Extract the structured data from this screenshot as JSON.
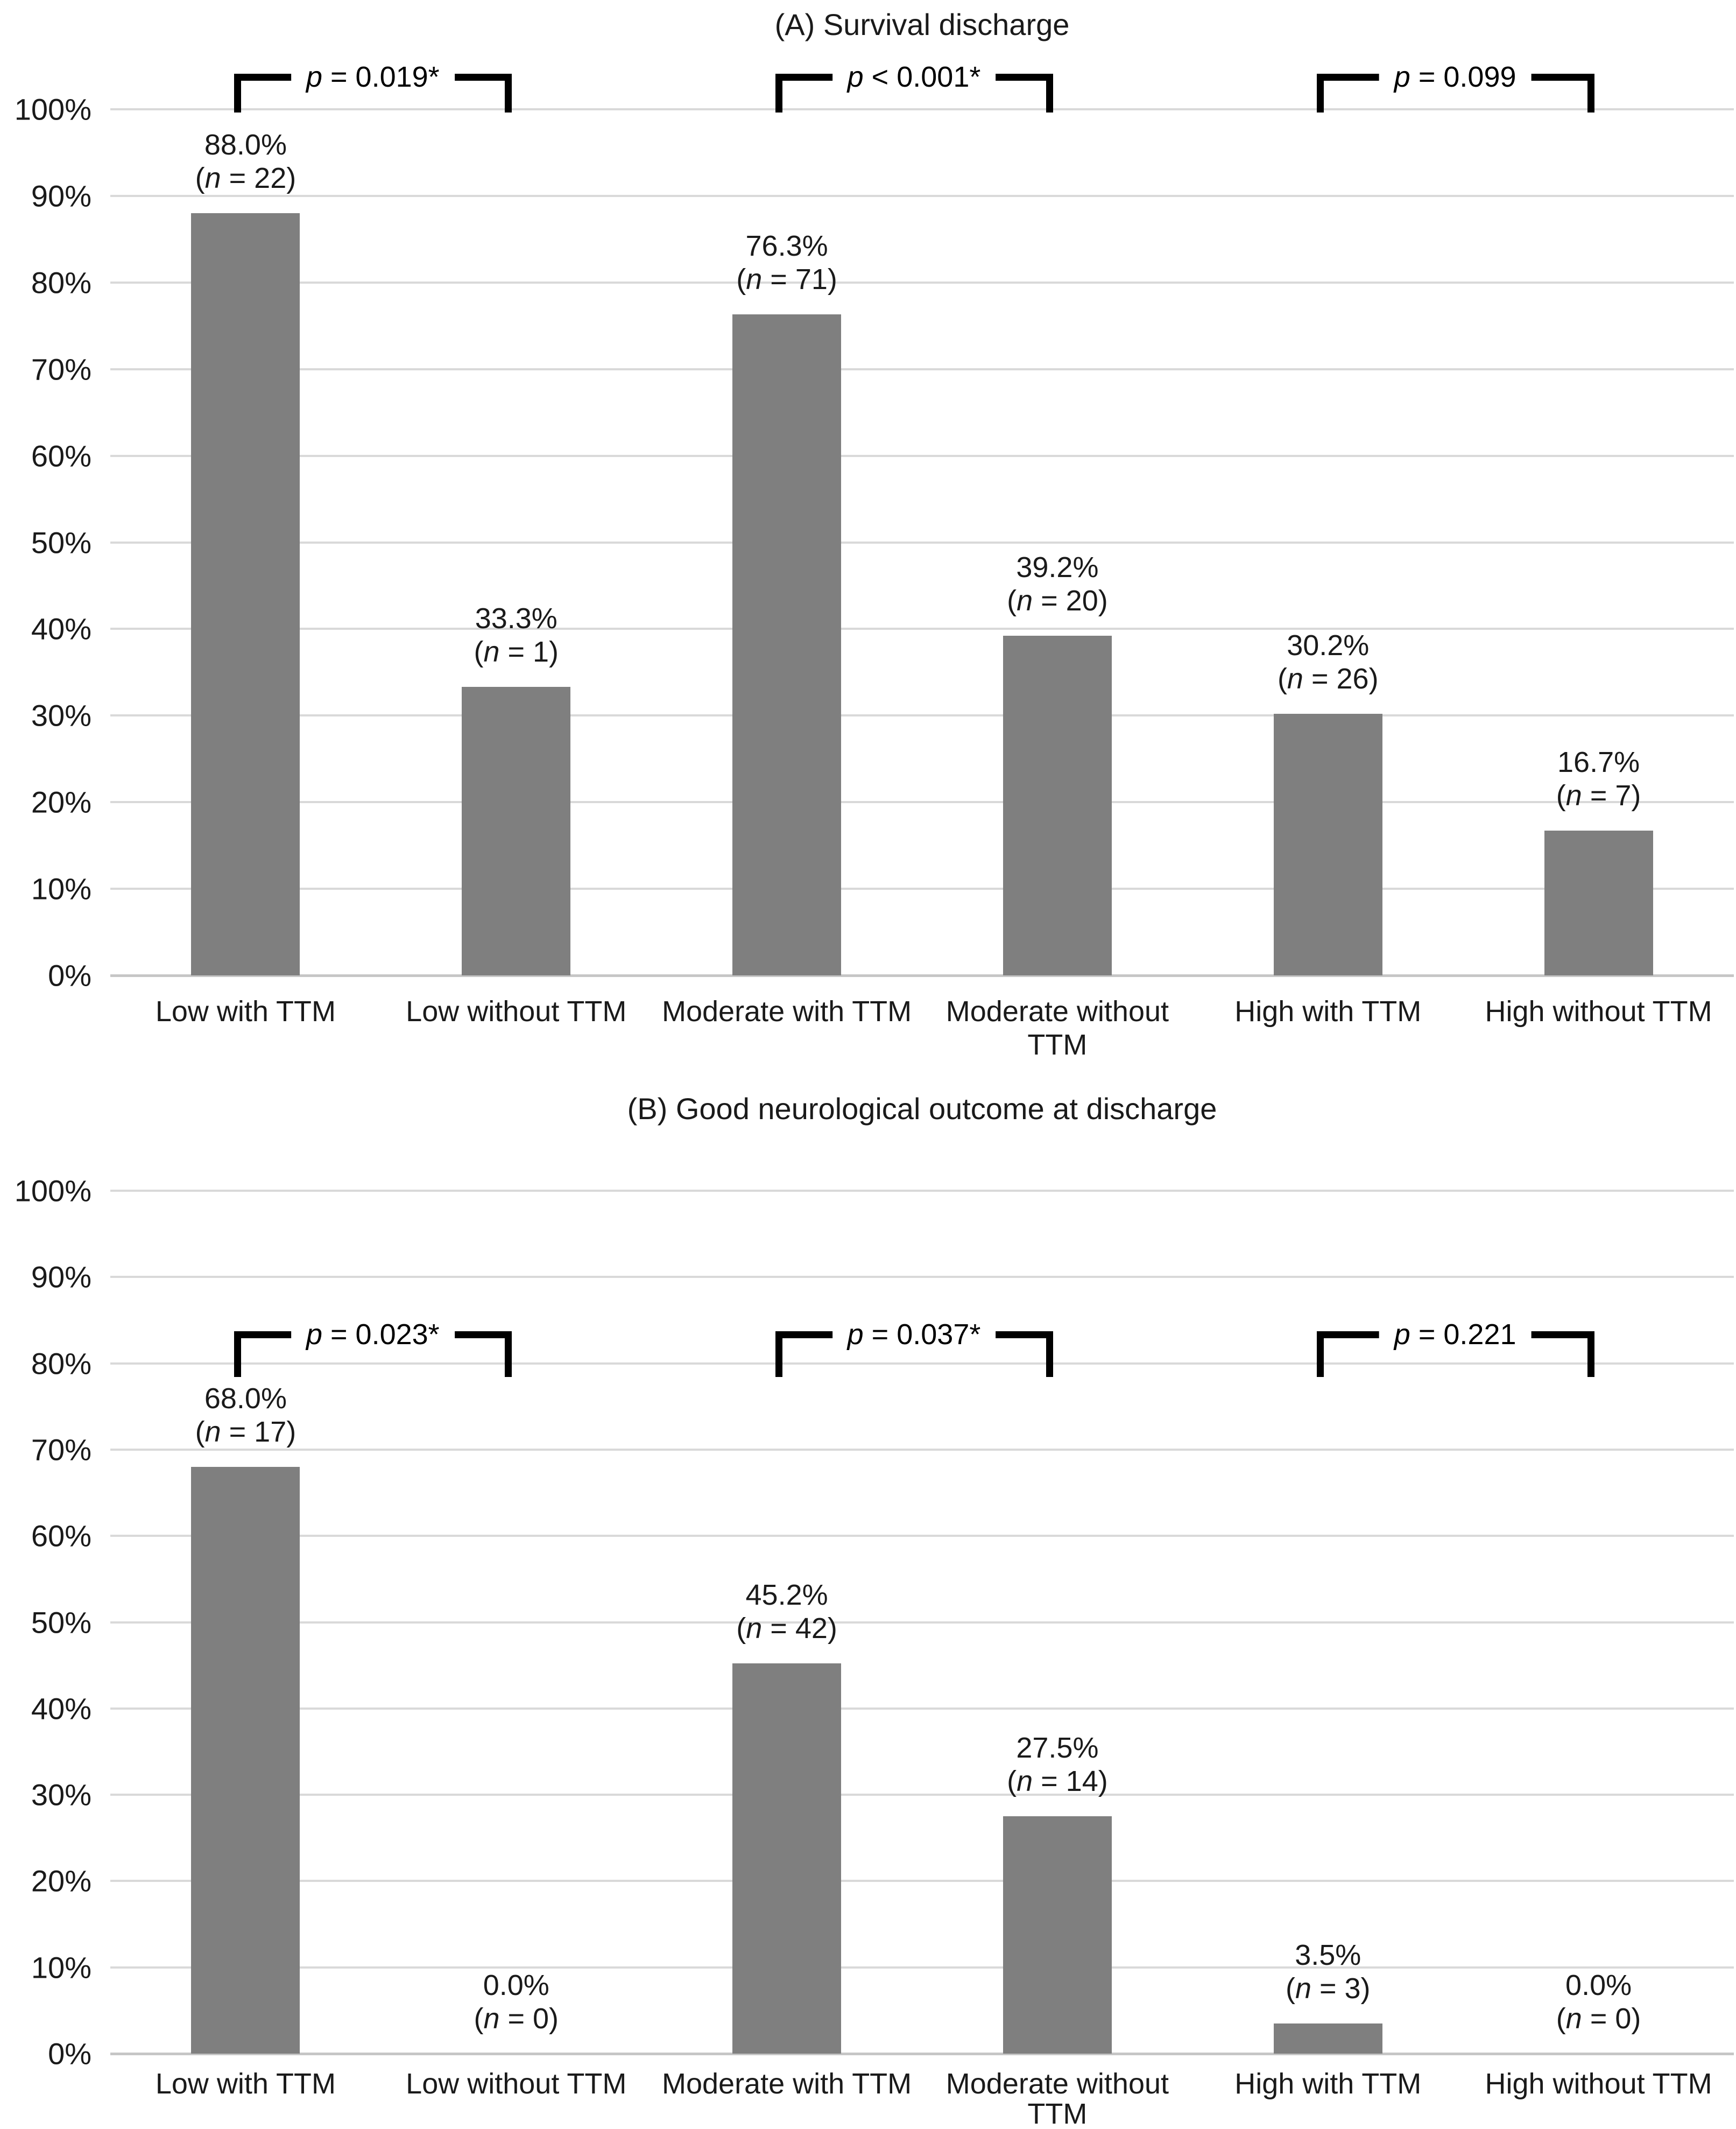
{
  "figure": {
    "panel_a_title": "(A) Survival discharge",
    "panel_b_title": "(B) Good neurological outcome at discharge"
  },
  "colors": {
    "bar": "#7f7f7f",
    "gridline": "#d9d9d9",
    "axis_line": "#c6c6c6",
    "bracket": "#000000",
    "text": "#1a1a1a",
    "background": "#ffffff"
  },
  "chart_data": [
    {
      "type": "bar",
      "panel": "A",
      "title": "(A) Survival discharge",
      "categories": [
        "Low with TTM",
        "Low without TTM",
        "Moderate with TTM",
        "Moderate without TTM",
        "High with TTM",
        "High without TTM"
      ],
      "values": [
        88.0,
        33.3,
        76.3,
        39.2,
        30.2,
        16.7
      ],
      "n": [
        22,
        1,
        71,
        20,
        26,
        7
      ],
      "data_labels": [
        [
          "88.0%",
          "(n = 22)"
        ],
        [
          "33.3%",
          "(n = 1)"
        ],
        [
          "76.3%",
          "(n = 71)"
        ],
        [
          "39.2%",
          "(n = 20)"
        ],
        [
          "30.2%",
          "(n = 26)"
        ],
        [
          "16.7%",
          "(n = 7)"
        ]
      ],
      "x_tick_lines": [
        [
          "Low with TTM"
        ],
        [
          "Low without TTM"
        ],
        [
          "Moderate with TTM"
        ],
        [
          "Moderate without",
          "TTM"
        ],
        [
          "High with TTM"
        ],
        [
          "High without TTM"
        ]
      ],
      "significance_brackets": [
        {
          "from": 0,
          "to": 1,
          "label": "p = 0.019*"
        },
        {
          "from": 2,
          "to": 3,
          "label": "p < 0.001*"
        },
        {
          "from": 4,
          "to": 5,
          "label": "p = 0.099"
        }
      ],
      "ylim": [
        0,
        100
      ],
      "y_tick_values": [
        0,
        10,
        20,
        30,
        40,
        50,
        60,
        70,
        80,
        90,
        100
      ],
      "y_tick_labels": [
        "0%",
        "10%",
        "20%",
        "30%",
        "40%",
        "50%",
        "60%",
        "70%",
        "80%",
        "90%",
        "100%"
      ],
      "xlabel": "",
      "ylabel": "",
      "grid": true,
      "legend": false,
      "bar_color": "#7f7f7f"
    },
    {
      "type": "bar",
      "panel": "B",
      "title": "(B) Good neurological outcome at discharge",
      "categories": [
        "Low with TTM",
        "Low without TTM",
        "Moderate with TTM",
        "Moderate without TTM",
        "High with TTM",
        "High without TTM"
      ],
      "values": [
        68.0,
        0.0,
        45.2,
        27.5,
        3.5,
        0.0
      ],
      "n": [
        17,
        0,
        42,
        14,
        3,
        0
      ],
      "data_labels": [
        [
          "68.0%",
          "(n = 17)"
        ],
        [
          "0.0%",
          "(n = 0)"
        ],
        [
          "45.2%",
          "(n = 42)"
        ],
        [
          "27.5%",
          "(n = 14)"
        ],
        [
          "3.5%",
          "(n = 3)"
        ],
        [
          "0.0%",
          "(n = 0)"
        ]
      ],
      "x_tick_lines": [
        [
          "Low with TTM"
        ],
        [
          "Low without TTM"
        ],
        [
          "Moderate with TTM"
        ],
        [
          "Moderate without",
          "TTM"
        ],
        [
          "High with TTM"
        ],
        [
          "High without TTM"
        ]
      ],
      "significance_brackets": [
        {
          "from": 0,
          "to": 1,
          "label": "p = 0.023*"
        },
        {
          "from": 2,
          "to": 3,
          "label": "p = 0.037*"
        },
        {
          "from": 4,
          "to": 5,
          "label": "p = 0.221"
        }
      ],
      "ylim": [
        0,
        100
      ],
      "y_tick_values": [
        0,
        10,
        20,
        30,
        40,
        50,
        60,
        70,
        80,
        90,
        100
      ],
      "y_tick_labels": [
        "0%",
        "10%",
        "20%",
        "30%",
        "40%",
        "50%",
        "60%",
        "70%",
        "80%",
        "90%",
        "100%"
      ],
      "xlabel": "",
      "ylabel": "",
      "grid": true,
      "legend": false,
      "bar_color": "#7f7f7f"
    }
  ]
}
